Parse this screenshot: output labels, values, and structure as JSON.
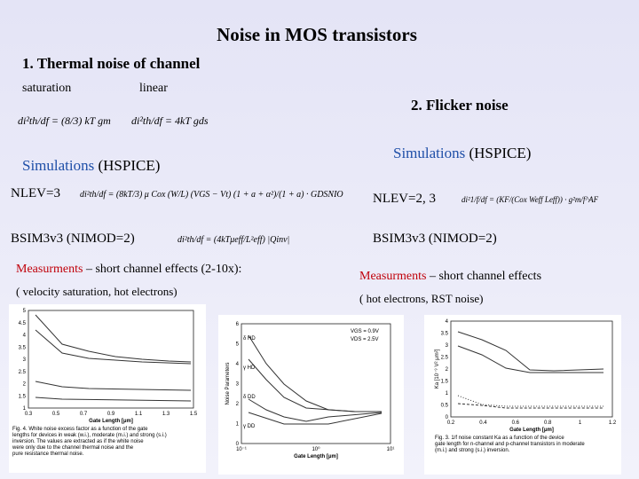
{
  "title": "Noise in  MOS transistors",
  "thermal": {
    "heading": "1. Thermal noise of channel",
    "saturation_label": "saturation",
    "linear_label": "linear",
    "saturation_eq": "di²th/df = (8/3) kT gm",
    "linear_eq": "di²th/df = 4kT gds",
    "sim_word": "Simulations",
    "sim_tool": "(HSPICE)",
    "nlev": "NLEV=3",
    "nlev_eq": "di²th/df = (8kT/3) μ Cox (W/L) (VGS − Vt) (1 + a + α²)/(1 + a) · GDSNIO",
    "bsim": "BSIM3v3 (NIMOD=2)",
    "bsim_eq": "di²th/df = (4kTμeff/L²eff) |Qinv|",
    "meas_word": "Measurments",
    "meas_rest": " – short channel effects (2-10x):",
    "meas_note": "( velocity saturation, hot electrons)"
  },
  "flicker": {
    "heading": "2. Flicker noise",
    "sim_word": "Simulations",
    "sim_tool": "(HSPICE)",
    "nlev": "NLEV=2, 3",
    "nlev_eq": "di²1/f/df = (KF/(Cox Weff Leff)) · g²m/f^AF",
    "bsim": "BSIM3v3 (NIMOD=2)",
    "meas_word": "Measurments",
    "meas_rest": " – short channel effects",
    "meas_note": "( hot electrons, RST noise)"
  },
  "figures": [
    {
      "xlabel": "Gate Length [μm]",
      "yticks": [
        "5",
        "4.5",
        "4",
        "3.5",
        "3",
        "2.5",
        "2",
        "1.5",
        "1"
      ],
      "xticks": [
        "0.3",
        "0.5",
        "0.7",
        "0.9",
        "1.1",
        "1.3",
        "1.5"
      ],
      "caption": [
        "Fig. 4. White noise excess factor as a function of the gate",
        "lengths for devices in weak (w.i.), moderate (m.i.) and strong (s.i.)",
        "inversion. The values are extracted as if the white noise",
        "were only due to the channel thermal noise and the",
        "pure resistance thermal noise."
      ]
    },
    {
      "ylabel": "Noise Parameters",
      "xlabel": "Gate Length [μm]",
      "yticks": [
        "6",
        "5",
        "4",
        "3",
        "2",
        "1",
        "0"
      ],
      "xticks": [
        "10⁻¹",
        "10⁰",
        "10¹"
      ],
      "legend": [
        "VGS = 0.9V",
        "VDS = 2.5V"
      ],
      "series": [
        "δ HD",
        "γ HD",
        "δ DD",
        "γ DD"
      ]
    },
    {
      "ylabel": "Ka [10⁻⁹ V² μm²]",
      "xlabel": "Gate Length [μm]",
      "yticks": [
        "4",
        "3.5",
        "3",
        "2.5",
        "2",
        "1.5",
        "1",
        "0.5",
        "0"
      ],
      "xticks": [
        "0.2",
        "0.4",
        "0.6",
        "0.8",
        "1",
        "1.2"
      ],
      "caption": [
        "Fig. 3. 1/f noise constant Ka as a function of the device",
        "gate length for n-channel and p-channel transistors in moderate",
        "(m.i.) and strong (s.i.) inversion."
      ]
    }
  ]
}
